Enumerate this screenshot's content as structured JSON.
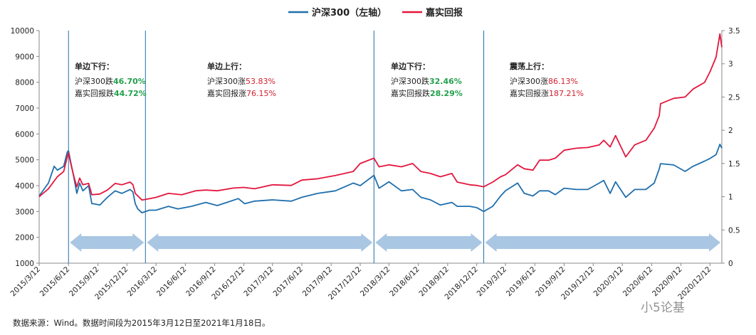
{
  "chart_data": {
    "type": "line",
    "legend": {
      "position": "top-center"
    },
    "colors": {
      "csi300": "#1f6fad",
      "harvest": "#e3173e",
      "band": "#a9c6e3",
      "divider": "#1f6fad",
      "green": "#22a04b",
      "red": "#d2202e"
    },
    "left_axis": {
      "min": 1000,
      "max": 10000,
      "ticks": [
        "1000",
        "2000",
        "3000",
        "4000",
        "5000",
        "6000",
        "7000",
        "8000",
        "9000",
        "10000"
      ]
    },
    "right_axis": {
      "min": 0,
      "max": 3.5,
      "ticks": [
        "0",
        "0.5",
        "1",
        "1.5",
        "2",
        "2.5",
        "3",
        "3.5"
      ]
    },
    "x_ticks": [
      "2015/3/12",
      "2015/6/12",
      "2015/9/12",
      "2015/12/12",
      "2016/3/12",
      "2016/6/12",
      "2016/9/12",
      "2016/12/12",
      "2017/3/12",
      "2017/6/12",
      "2017/9/12",
      "2017/12/12",
      "2018/3/12",
      "2018/6/12",
      "2018/9/12",
      "2018/12/12",
      "2019/3/12",
      "2019/6/12",
      "2019/9/12",
      "2019/12/12",
      "2020/3/12",
      "2020/6/12",
      "2020/9/12",
      "2020/12/12"
    ],
    "grid": false,
    "series": [
      {
        "name": "沪深300（左轴）",
        "axis": "left",
        "points": [
          [
            "2015/03/12",
            3600
          ],
          [
            "2015/04/10",
            4100
          ],
          [
            "2015/04/28",
            4750
          ],
          [
            "2015/05/08",
            4600
          ],
          [
            "2015/05/28",
            4750
          ],
          [
            "2015/06/08",
            5300
          ],
          [
            "2015/06/12",
            5350
          ],
          [
            "2015/06/19",
            4900
          ],
          [
            "2015/06/29",
            4300
          ],
          [
            "2015/07/08",
            3700
          ],
          [
            "2015/07/17",
            4100
          ],
          [
            "2015/07/27",
            3800
          ],
          [
            "2015/08/14",
            4000
          ],
          [
            "2015/08/24",
            3300
          ],
          [
            "2015/08/28",
            3300
          ],
          [
            "2015/09/18",
            3250
          ],
          [
            "2015/10/12",
            3550
          ],
          [
            "2015/11/05",
            3800
          ],
          [
            "2015/11/26",
            3700
          ],
          [
            "2015/12/22",
            3850
          ],
          [
            "2015/12/31",
            3750
          ],
          [
            "2016/01/07",
            3300
          ],
          [
            "2016/01/15",
            3100
          ],
          [
            "2016/01/28",
            2950
          ],
          [
            "2016/02/20",
            3050
          ],
          [
            "2016/03/12",
            3050
          ],
          [
            "2016/04/20",
            3200
          ],
          [
            "2016/05/20",
            3100
          ],
          [
            "2016/07/01",
            3200
          ],
          [
            "2016/08/15",
            3350
          ],
          [
            "2016/09/20",
            3230
          ],
          [
            "2016/10/20",
            3350
          ],
          [
            "2016/11/25",
            3500
          ],
          [
            "2016/12/15",
            3300
          ],
          [
            "2017/01/15",
            3400
          ],
          [
            "2017/03/12",
            3450
          ],
          [
            "2017/05/10",
            3400
          ],
          [
            "2017/06/12",
            3550
          ],
          [
            "2017/08/01",
            3700
          ],
          [
            "2017/09/25",
            3800
          ],
          [
            "2017/11/20",
            4100
          ],
          [
            "2017/12/12",
            4000
          ],
          [
            "2018/01/24",
            4400
          ],
          [
            "2018/02/09",
            3900
          ],
          [
            "2018/03/12",
            4150
          ],
          [
            "2018/04/20",
            3800
          ],
          [
            "2018/05/25",
            3850
          ],
          [
            "2018/06/20",
            3550
          ],
          [
            "2018/07/20",
            3450
          ],
          [
            "2018/08/20",
            3250
          ],
          [
            "2018/09/25",
            3350
          ],
          [
            "2018/10/12",
            3200
          ],
          [
            "2018/11/20",
            3200
          ],
          [
            "2018/12/12",
            3150
          ],
          [
            "2019/01/03",
            3000
          ],
          [
            "2019/01/31",
            3200
          ],
          [
            "2019/02/25",
            3600
          ],
          [
            "2019/03/12",
            3800
          ],
          [
            "2019/04/19",
            4100
          ],
          [
            "2019/05/10",
            3700
          ],
          [
            "2019/06/06",
            3600
          ],
          [
            "2019/06/27",
            3800
          ],
          [
            "2019/07/25",
            3800
          ],
          [
            "2019/08/15",
            3650
          ],
          [
            "2019/09/12",
            3900
          ],
          [
            "2019/10/20",
            3850
          ],
          [
            "2019/11/25",
            3850
          ],
          [
            "2019/12/31",
            4100
          ],
          [
            "2020/01/14",
            4200
          ],
          [
            "2020/02/03",
            3700
          ],
          [
            "2020/02/20",
            4150
          ],
          [
            "2020/03/23",
            3550
          ],
          [
            "2020/04/20",
            3850
          ],
          [
            "2020/05/25",
            3850
          ],
          [
            "2020/06/20",
            4100
          ],
          [
            "2020/07/06",
            4650
          ],
          [
            "2020/07/10",
            4850
          ],
          [
            "2020/08/20",
            4800
          ],
          [
            "2020/09/25",
            4550
          ],
          [
            "2020/10/20",
            4750
          ],
          [
            "2020/11/25",
            4950
          ],
          [
            "2020/12/12",
            5050
          ],
          [
            "2020/12/31",
            5200
          ],
          [
            "2021/01/12",
            5600
          ],
          [
            "2021/01/18",
            5450
          ]
        ]
      },
      {
        "name": "嘉实回报",
        "axis": "right",
        "points": [
          [
            "2015/03/12",
            1.0
          ],
          [
            "2015/04/10",
            1.12
          ],
          [
            "2015/05/08",
            1.3
          ],
          [
            "2015/05/28",
            1.38
          ],
          [
            "2015/06/08",
            1.6
          ],
          [
            "2015/06/12",
            1.66
          ],
          [
            "2015/06/19",
            1.5
          ],
          [
            "2015/06/29",
            1.3
          ],
          [
            "2015/07/08",
            1.15
          ],
          [
            "2015/07/17",
            1.28
          ],
          [
            "2015/07/27",
            1.18
          ],
          [
            "2015/08/14",
            1.2
          ],
          [
            "2015/08/24",
            1.03
          ],
          [
            "2015/09/18",
            1.04
          ],
          [
            "2015/10/12",
            1.1
          ],
          [
            "2015/11/05",
            1.2
          ],
          [
            "2015/11/26",
            1.18
          ],
          [
            "2015/12/22",
            1.22
          ],
          [
            "2015/12/31",
            1.18
          ],
          [
            "2016/01/07",
            1.05
          ],
          [
            "2016/01/28",
            0.95
          ],
          [
            "2016/02/20",
            0.97
          ],
          [
            "2016/03/12",
            0.99
          ],
          [
            "2016/04/20",
            1.05
          ],
          [
            "2016/06/01",
            1.03
          ],
          [
            "2016/07/15",
            1.09
          ],
          [
            "2016/08/15",
            1.1
          ],
          [
            "2016/09/20",
            1.09
          ],
          [
            "2016/11/10",
            1.13
          ],
          [
            "2016/12/12",
            1.14
          ],
          [
            "2017/01/15",
            1.12
          ],
          [
            "2017/03/12",
            1.18
          ],
          [
            "2017/05/10",
            1.17
          ],
          [
            "2017/06/12",
            1.25
          ],
          [
            "2017/08/01",
            1.27
          ],
          [
            "2017/09/25",
            1.32
          ],
          [
            "2017/11/20",
            1.38
          ],
          [
            "2017/12/12",
            1.5
          ],
          [
            "2018/01/24",
            1.58
          ],
          [
            "2018/02/09",
            1.45
          ],
          [
            "2018/03/12",
            1.48
          ],
          [
            "2018/04/20",
            1.45
          ],
          [
            "2018/05/25",
            1.5
          ],
          [
            "2018/06/20",
            1.38
          ],
          [
            "2018/07/20",
            1.35
          ],
          [
            "2018/08/20",
            1.3
          ],
          [
            "2018/09/25",
            1.35
          ],
          [
            "2018/10/12",
            1.22
          ],
          [
            "2018/11/20",
            1.18
          ],
          [
            "2018/12/12",
            1.17
          ],
          [
            "2019/01/03",
            1.15
          ],
          [
            "2019/01/31",
            1.22
          ],
          [
            "2019/02/25",
            1.3
          ],
          [
            "2019/03/12",
            1.33
          ],
          [
            "2019/04/19",
            1.48
          ],
          [
            "2019/05/10",
            1.42
          ],
          [
            "2019/06/06",
            1.4
          ],
          [
            "2019/06/27",
            1.55
          ],
          [
            "2019/07/25",
            1.55
          ],
          [
            "2019/08/15",
            1.58
          ],
          [
            "2019/09/12",
            1.7
          ],
          [
            "2019/10/20",
            1.73
          ],
          [
            "2019/11/25",
            1.74
          ],
          [
            "2019/12/31",
            1.78
          ],
          [
            "2020/01/14",
            1.85
          ],
          [
            "2020/02/03",
            1.75
          ],
          [
            "2020/02/20",
            1.92
          ],
          [
            "2020/03/23",
            1.6
          ],
          [
            "2020/04/20",
            1.78
          ],
          [
            "2020/05/25",
            1.85
          ],
          [
            "2020/06/20",
            2.03
          ],
          [
            "2020/07/06",
            2.22
          ],
          [
            "2020/07/10",
            2.4
          ],
          [
            "2020/08/20",
            2.48
          ],
          [
            "2020/09/25",
            2.5
          ],
          [
            "2020/10/20",
            2.62
          ],
          [
            "2020/11/25",
            2.72
          ],
          [
            "2020/12/12",
            2.88
          ],
          [
            "2020/12/31",
            3.1
          ],
          [
            "2021/01/12",
            3.45
          ],
          [
            "2021/01/18",
            3.25
          ]
        ]
      }
    ],
    "dividers": [
      "2015/06/12",
      "2016/02/08",
      "2018/01/24",
      "2019/01/03"
    ],
    "band_arrows": [
      {
        "from": "2015/06/12",
        "to": "2016/02/08"
      },
      {
        "from": "2016/02/08",
        "to": "2018/01/24"
      },
      {
        "from": "2018/01/24",
        "to": "2019/01/03"
      },
      {
        "from": "2019/01/03",
        "to": "2021/01/18"
      }
    ],
    "annotations": [
      {
        "title": "单边下行：",
        "line1_prefix": "沪深300跌",
        "line1_value": "46.70%",
        "line1_color": "#22a04b",
        "line1_bold": true,
        "line2_prefix": "嘉实回报跌",
        "line2_value": "44.72%",
        "line2_color": "#22a04b",
        "line2_bold": true
      },
      {
        "title": "单边上行：",
        "line1_prefix": "沪深300涨",
        "line1_value": "53.83%",
        "line1_color": "#d2202e",
        "line1_bold": false,
        "line2_prefix": "嘉实回报涨",
        "line2_value": "76.15%",
        "line2_color": "#d2202e",
        "line2_bold": false
      },
      {
        "title": "单边下行：",
        "line1_prefix": "沪深300跌",
        "line1_value": "32.46%",
        "line1_color": "#22a04b",
        "line1_bold": true,
        "line2_prefix": "嘉实回报跌",
        "line2_value": "28.29%",
        "line2_color": "#22a04b",
        "line2_bold": true
      },
      {
        "title": "震荡上行：",
        "line1_prefix": "沪深300涨",
        "line1_value": "86.13%",
        "line1_color": "#d2202e",
        "line1_bold": false,
        "line2_prefix": "嘉实回报涨",
        "line2_value": "187.21%",
        "line2_color": "#d2202e",
        "line2_bold": false
      }
    ]
  },
  "source_note": "数据来源：Wind。数据时间段为2015年3月12日至2021年1月18日。",
  "watermark": "小5论基"
}
